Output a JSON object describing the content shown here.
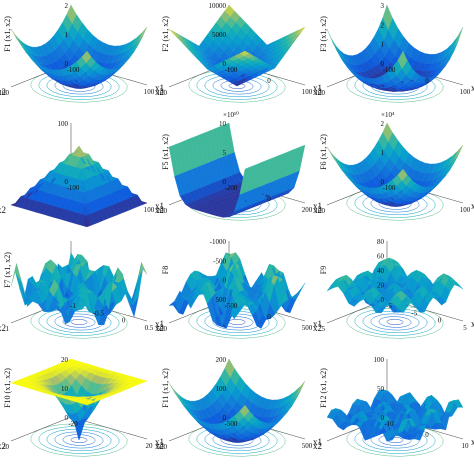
{
  "chart_data": [
    {
      "type": "surface",
      "title": "",
      "zlabel": "F1 (x1, x2)",
      "xlabel": "x1",
      "ylabel": "x2",
      "z_ticks": [
        "0",
        "1",
        "2"
      ],
      "z_exponent": "×10⁴",
      "x_ticks": [
        "-100",
        "100"
      ],
      "y_ticks": [
        "100"
      ],
      "shape": "bowl"
    },
    {
      "type": "surface",
      "title": "",
      "zlabel": "F2 (x1, x2)",
      "xlabel": "x1",
      "ylabel": "x2",
      "z_ticks": [
        "0",
        "5000",
        "10000"
      ],
      "z_exponent": "",
      "x_ticks": [
        "-100",
        "0",
        "100"
      ],
      "y_ticks": [
        "100"
      ],
      "shape": "vfold"
    },
    {
      "type": "surface",
      "title": "",
      "zlabel": "F3 (x1, x2)",
      "xlabel": "x1",
      "ylabel": "x2",
      "z_ticks": [
        "0",
        "1",
        "2",
        "3"
      ],
      "z_exponent": "×10⁴",
      "x_ticks": [
        "-100",
        "0",
        "100"
      ],
      "y_ticks": [
        "100"
      ],
      "shape": "flatbowl"
    },
    {
      "type": "surface",
      "title": "",
      "zlabel": "",
      "xlabel": "x1",
      "ylabel": "x2",
      "z_ticks": [
        "0",
        "100"
      ],
      "z_exponent": "",
      "x_ticks": [
        "-100",
        "100"
      ],
      "y_ticks": [],
      "shape": "pyramid"
    },
    {
      "type": "surface",
      "title": "",
      "zlabel": "F5 (x1, x2)",
      "xlabel": "x1",
      "ylabel": "x2",
      "z_ticks": [
        "0",
        "5",
        "10"
      ],
      "z_exponent": "×10¹⁰",
      "x_ticks": [
        "-200",
        "0",
        "200"
      ],
      "y_ticks": [
        "200"
      ],
      "shape": "valley"
    },
    {
      "type": "surface",
      "title": "",
      "zlabel": "F6 (x1, x2)",
      "xlabel": "x1",
      "ylabel": "x2",
      "z_ticks": [
        "0",
        "1",
        "2"
      ],
      "z_exponent": "×10⁴",
      "x_ticks": [
        "-100",
        "100"
      ],
      "y_ticks": [
        "100"
      ],
      "shape": "bowl"
    },
    {
      "type": "surface",
      "title": "",
      "zlabel": "F7 (x1, x2)",
      "xlabel": "x1",
      "ylabel": "x2",
      "z_ticks": [],
      "z_exponent": "",
      "x_ticks": [
        "-1",
        "-0.5",
        "0",
        "0.5"
      ],
      "y_ticks": [
        "1"
      ],
      "shape": "noise"
    },
    {
      "type": "surface",
      "title": "",
      "zlabel": "F8",
      "xlabel": "x1",
      "ylabel": "x2",
      "z_ticks": [
        "500",
        "0",
        "-500",
        "-1000"
      ],
      "z_exponent": "",
      "x_ticks": [
        "-500",
        "0",
        "500"
      ],
      "y_ticks": [
        "500"
      ],
      "shape": "wave"
    },
    {
      "type": "surface",
      "title": "",
      "zlabel": "F9",
      "xlabel": "x1",
      "ylabel": "x2",
      "z_ticks": [
        "0",
        "20",
        "40",
        "60",
        "80"
      ],
      "z_exponent": "",
      "x_ticks": [
        "-5",
        "-5",
        "0",
        "5"
      ],
      "y_ticks": [
        "5"
      ],
      "shape": "rastrigin"
    },
    {
      "type": "surface",
      "title": "",
      "zlabel": "F10 (x1, x2)",
      "xlabel": "x1",
      "ylabel": "x2",
      "z_ticks": [
        "0",
        "10",
        "20"
      ],
      "z_exponent": "",
      "x_ticks": [
        "-20",
        "20"
      ],
      "y_ticks": [
        "20"
      ],
      "shape": "funnel"
    },
    {
      "type": "surface",
      "title": "",
      "zlabel": "F11 (x1, x2)",
      "xlabel": "x1",
      "ylabel": "x2",
      "z_ticks": [
        "0",
        "100",
        "200"
      ],
      "z_exponent": "",
      "x_ticks": [
        "-500",
        "500"
      ],
      "y_ticks": [
        "500"
      ],
      "shape": "bowl"
    },
    {
      "type": "surface",
      "title": "",
      "zlabel": "F12 (x1, x2)",
      "xlabel": "x1",
      "ylabel": "x2",
      "z_ticks": [
        "0",
        "50",
        "100"
      ],
      "z_exponent": "",
      "x_ticks": [
        "-10",
        "0",
        "10"
      ],
      "y_ticks": [],
      "shape": "ridges"
    }
  ],
  "colors": {
    "low": "#352a87",
    "mid": "#21a3a7",
    "high": "#f8fa0d"
  }
}
